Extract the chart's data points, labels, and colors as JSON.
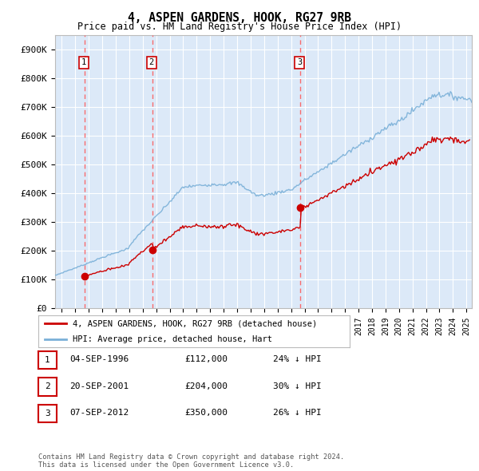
{
  "title": "4, ASPEN GARDENS, HOOK, RG27 9RB",
  "subtitle": "Price paid vs. HM Land Registry's House Price Index (HPI)",
  "background_color": "#ffffff",
  "plot_bg_color": "#dce9f8",
  "grid_color": "#ffffff",
  "hpi_color": "#7ab0d8",
  "price_color": "#cc0000",
  "vline_color": "#ff5555",
  "sales": [
    {
      "date_num": 1996.7,
      "price": 112000,
      "label": "1"
    },
    {
      "date_num": 2001.72,
      "price": 204000,
      "label": "2"
    },
    {
      "date_num": 2012.68,
      "price": 350000,
      "label": "3"
    }
  ],
  "table_rows": [
    {
      "num": "1",
      "date": "04-SEP-1996",
      "price": "£112,000",
      "hpi": "24% ↓ HPI"
    },
    {
      "num": "2",
      "date": "20-SEP-2001",
      "price": "£204,000",
      "hpi": "30% ↓ HPI"
    },
    {
      "num": "3",
      "date": "07-SEP-2012",
      "price": "£350,000",
      "hpi": "26% ↓ HPI"
    }
  ],
  "legend_entries": [
    "4, ASPEN GARDENS, HOOK, RG27 9RB (detached house)",
    "HPI: Average price, detached house, Hart"
  ],
  "footnote": "Contains HM Land Registry data © Crown copyright and database right 2024.\nThis data is licensed under the Open Government Licence v3.0.",
  "xlim": [
    1994.5,
    2025.4
  ],
  "ylim": [
    0,
    950000
  ],
  "yticks": [
    0,
    100000,
    200000,
    300000,
    400000,
    500000,
    600000,
    700000,
    800000,
    900000
  ],
  "ytick_labels": [
    "£0",
    "£100K",
    "£200K",
    "£300K",
    "£400K",
    "£500K",
    "£600K",
    "£700K",
    "£800K",
    "£900K"
  ]
}
